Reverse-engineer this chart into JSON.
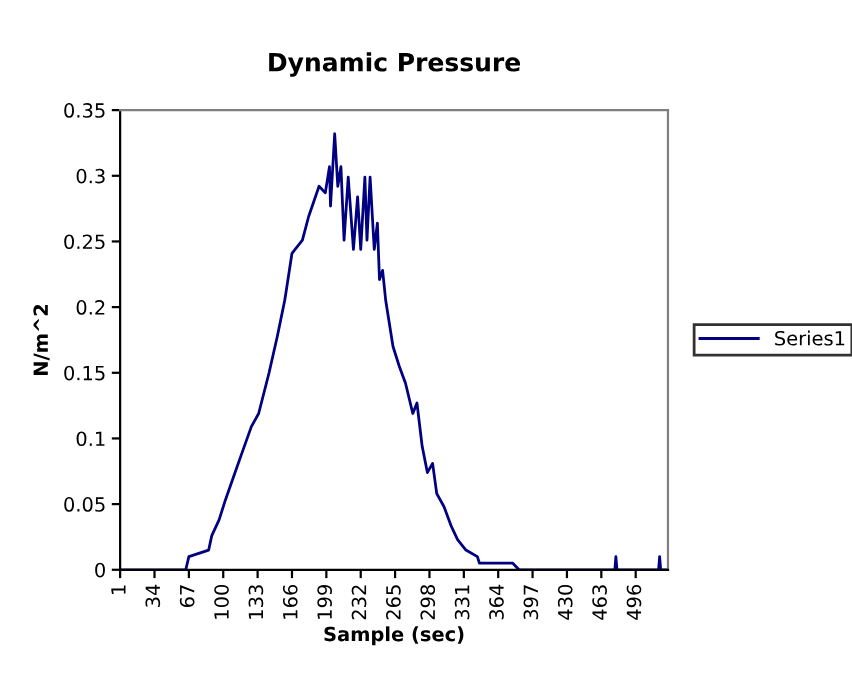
{
  "chart_data": {
    "type": "line",
    "title": "Dynamic Pressure",
    "xlabel": "Sample (sec)",
    "ylabel": "N/m^2",
    "series": [
      {
        "name": "Series1",
        "color": "#000080",
        "x": [
          1,
          64,
          67,
          86,
          89,
          96,
          102,
          110,
          118,
          127,
          134,
          144,
          152,
          159,
          160,
          166,
          176,
          182,
          192,
          198,
          202,
          203,
          207,
          210,
          213,
          216,
          220,
          225,
          229,
          232,
          236,
          238,
          241,
          245,
          248,
          250,
          253,
          256,
          263,
          269,
          275,
          282,
          286,
          291,
          296,
          301,
          305,
          312,
          319,
          325,
          333,
          344,
          346,
          378,
          384,
          476,
          477,
          478,
          518,
          519,
          520,
          527
        ],
        "values": [
          0,
          0,
          0.01,
          0.015,
          0.026,
          0.038,
          0.053,
          0.071,
          0.089,
          0.109,
          0.119,
          0.15,
          0.178,
          0.205,
          0.21,
          0.241,
          0.251,
          0.269,
          0.292,
          0.287,
          0.307,
          0.277,
          0.332,
          0.292,
          0.307,
          0.251,
          0.299,
          0.244,
          0.284,
          0.244,
          0.299,
          0.251,
          0.299,
          0.244,
          0.264,
          0.221,
          0.228,
          0.205,
          0.17,
          0.155,
          0.142,
          0.119,
          0.127,
          0.094,
          0.074,
          0.081,
          0.058,
          0.048,
          0.033,
          0.023,
          0.015,
          0.01,
          0.005,
          0.005,
          0,
          0,
          0.01,
          0,
          0,
          0.01,
          0,
          0
        ]
      }
    ],
    "xlim": [
      1,
      527
    ],
    "xticks": [
      1,
      34,
      67,
      100,
      133,
      166,
      199,
      232,
      265,
      298,
      331,
      364,
      397,
      430,
      463,
      496
    ],
    "ylim": [
      0,
      0.35
    ],
    "yticks": [
      0,
      0.05,
      0.1,
      0.15,
      0.2,
      0.25,
      0.3,
      0.35
    ],
    "grid": false,
    "legend": "right",
    "marker": "none",
    "line_style": "solid"
  }
}
